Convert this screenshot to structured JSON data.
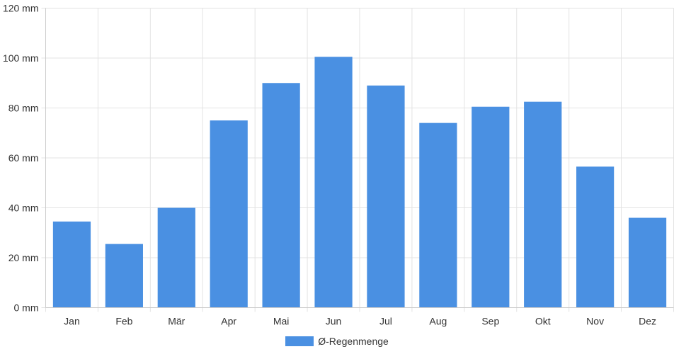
{
  "chart_data": {
    "type": "bar",
    "categories": [
      "Jan",
      "Feb",
      "Mär",
      "Apr",
      "Mai",
      "Jun",
      "Jul",
      "Aug",
      "Sep",
      "Okt",
      "Nov",
      "Dez"
    ],
    "series": [
      {
        "name": "Ø-Regenmenge",
        "values": [
          34.5,
          25.5,
          40,
          75,
          90,
          100.5,
          89,
          74,
          80.5,
          82.5,
          56.5,
          36
        ],
        "color": "#4a90e2"
      }
    ],
    "y_ticks": [
      "0 mm",
      "20 mm",
      "40 mm",
      "60 mm",
      "80 mm",
      "100 mm",
      "120 mm"
    ],
    "ylim": [
      0,
      120
    ],
    "y_step": 20,
    "y_unit": "mm",
    "grid": true,
    "legend_position": "bottom"
  },
  "colors": {
    "bar": "#4a90e2",
    "grid": "#e3e3e3",
    "text": "#333333"
  }
}
